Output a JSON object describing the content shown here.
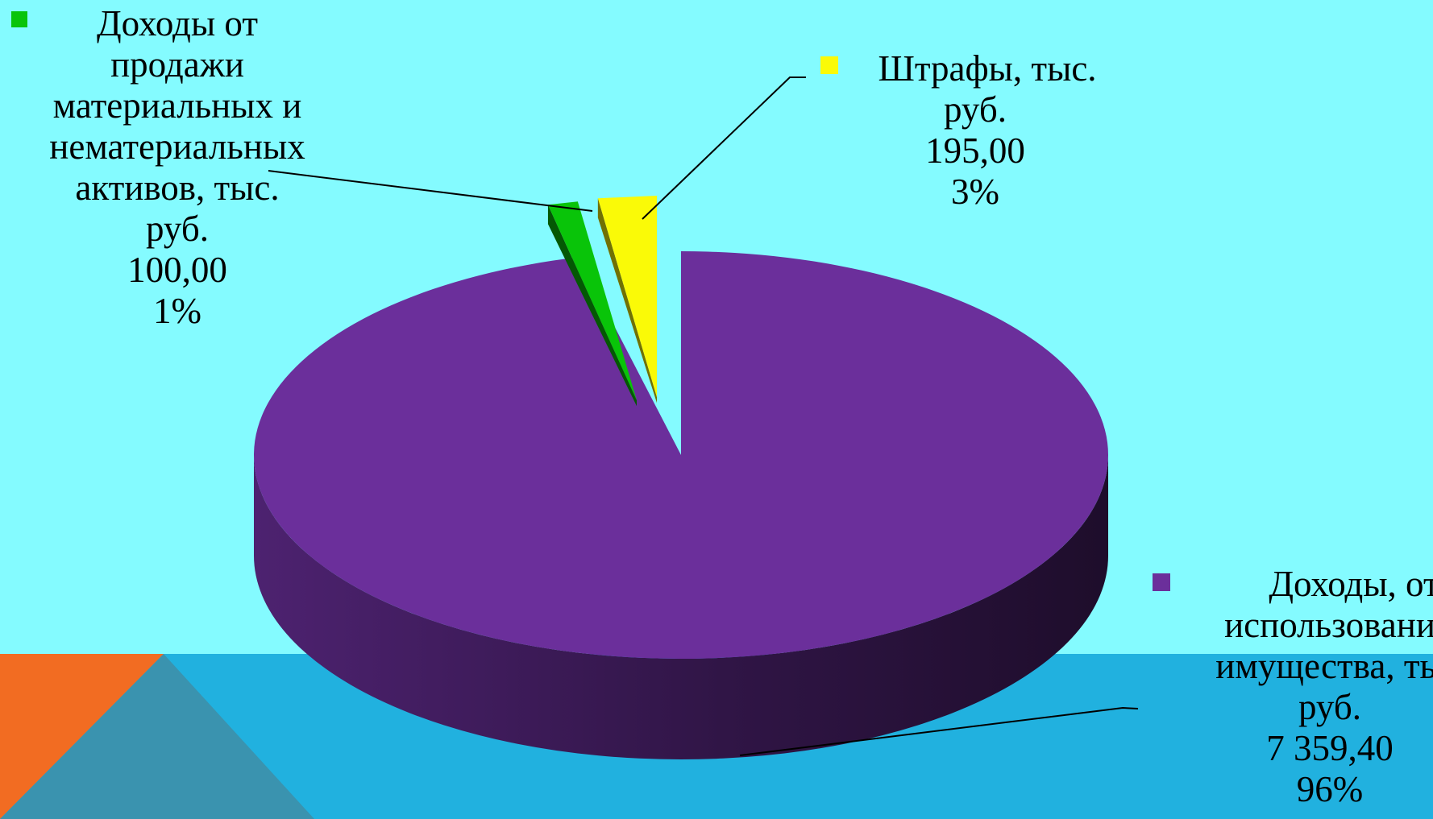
{
  "colors": {
    "background_top": "#84FBFF",
    "background_bottom": "#21B1DF",
    "corner_orange": "#F26C22",
    "corner_teal": "#3A93AF",
    "slice_purple": "#6B2F9B",
    "slice_green": "#09C409",
    "slice_yellow": "#FAFA07"
  },
  "chart_data": {
    "type": "pie",
    "style": "3d-exploded",
    "title": "",
    "slices": [
      {
        "label_lines": [
          "Доходы, от",
          "использовани",
          "имущества, ты",
          "руб."
        ],
        "value": 7359.4,
        "value_text": "7 359,40",
        "percent": 96,
        "percent_text": "96%",
        "color": "#6B2F9B"
      },
      {
        "label_lines": [
          "Доходы от",
          "продажи",
          "материальных и",
          "нематериальных",
          "активов, тыс.",
          "руб."
        ],
        "value": 100.0,
        "value_text": "100,00",
        "percent": 1,
        "percent_text": "1%",
        "color": "#09C409"
      },
      {
        "label_lines": [
          "Штрафы, тыс.",
          "руб."
        ],
        "value": 195.0,
        "value_text": "195,00",
        "percent": 3,
        "percent_text": "3%",
        "color": "#FAFA07"
      }
    ]
  }
}
